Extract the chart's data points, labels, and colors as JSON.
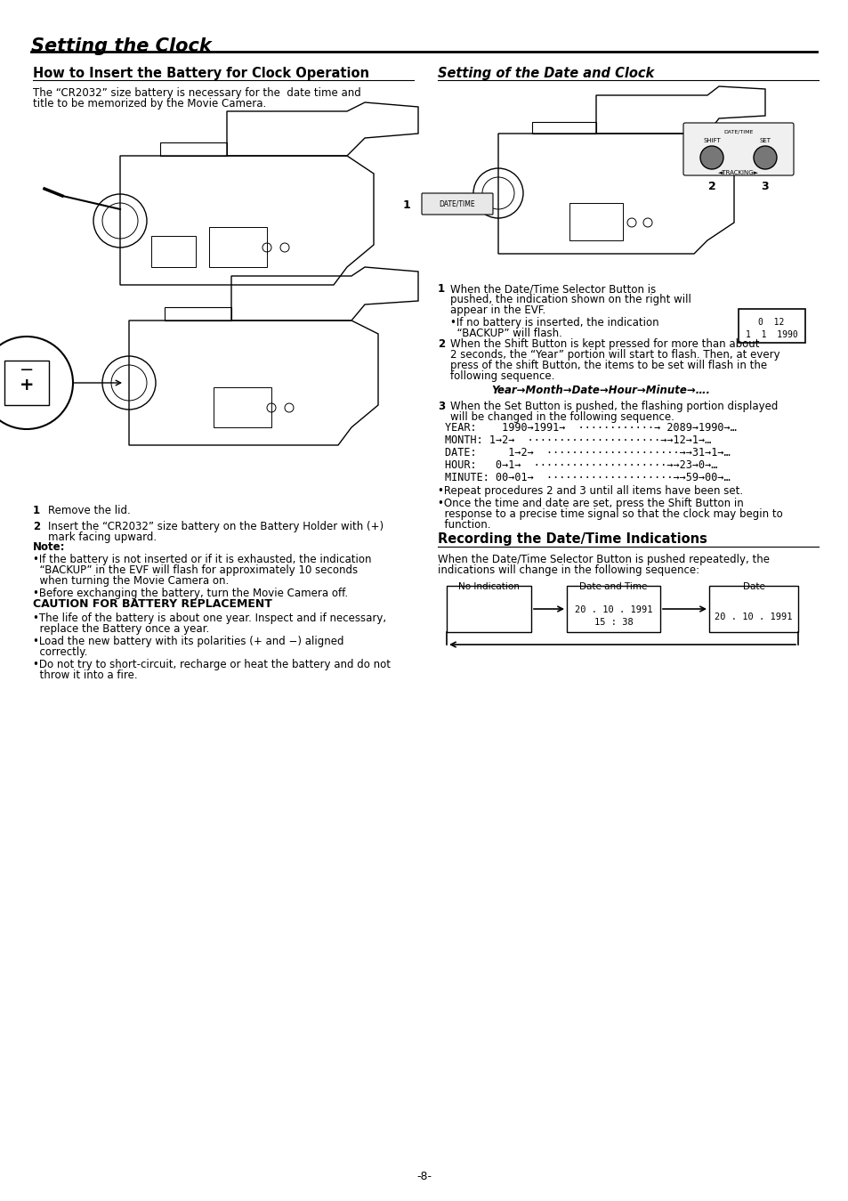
{
  "page_title": "Setting the Clock",
  "left_section_title": "How to Insert the Battery for Clock Operation",
  "left_intro_line1": "The “CR2032” size battery is necessary for the  date time and",
  "left_intro_line2": "title to be memorized by the Movie Camera.",
  "step1": "Remove the lid.",
  "step2_line1": "Insert the “CR2032” size battery on the Battery Holder with (+)",
  "step2_line2": "mark facing upward.",
  "note_title": "Note:",
  "note_b1_line1": "•If the battery is not inserted or if it is exhausted, the indication",
  "note_b1_line2": "  “BACKUP” in the EVF will flash for approximately 10 seconds",
  "note_b1_line3": "  when turning the Movie Camera on.",
  "note_b2": "•Before exchanging the battery, turn the Movie Camera off.",
  "caution_title": "CAUTION FOR BATTERY REPLACEMENT",
  "caution_b1_line1": "•The life of the battery is about one year. Inspect and if necessary,",
  "caution_b1_line2": "  replace the Battery once a year.",
  "caution_b2_line1": "•Load the new battery with its polarities (+ and −) aligned",
  "caution_b2_line2": "  correctly.",
  "caution_b3_line1": "•Do not try to short-circuit, recharge or heat the battery and do not",
  "caution_b3_line2": "  throw it into a fire.",
  "right_section_title": "Setting of the Date and Clock",
  "r_step1_num": "1",
  "r_step1_line1": "When the Date/Time Selector Button is",
  "r_step1_line2": "pushed, the indication shown on the right will",
  "r_step1_line3": "appear in the EVF.",
  "r_step1_b": "•If no battery is inserted, the indication",
  "r_step1_b2": "  “BACKUP” will flash.",
  "r_step2_num": "2",
  "r_step2_line1": "When the Shift Button is kept pressed for more than about",
  "r_step2_line2": "2 seconds, the “Year” portion will start to flash. Then, at every",
  "r_step2_line3": "press of the shift Button, the items to be set will flash in the",
  "r_step2_line4": "following sequence.",
  "r_seq": "Year→Month→Date→Hour→Minute→….",
  "r_step3_num": "3",
  "r_step3_line1": "When the Set Button is pushed, the flashing portion displayed",
  "r_step3_line2": "will be changed in the following sequence.",
  "year_line": "YEAR:    1990→1991→  ············→ 2089→1990→…",
  "month_line": "MONTH: 1→2→  ·····················→→12→1→…",
  "date_line": "DATE:     1→2→  ·····················→→31→1→…",
  "hour_line": "HOUR:   0→1→  ·····················→→23→0→…",
  "minute_line": "MINUTE: 00→01→  ····················→→59→00→…",
  "repeat1": "•Repeat procedures 2 and 3 until all items have been set.",
  "repeat2_line1": "•Once the time and date are set, press the Shift Button in",
  "repeat2_line2": "  response to a precise time signal so that the clock may begin to",
  "repeat2_line3": "  function.",
  "recording_title": "Recording the Date/Time Indications",
  "rec_intro1": "When the Date/Time Selector Button is pushed repeatedly, the",
  "rec_intro2": "indications will change in the following sequence:",
  "rec_label1": "No Indication",
  "rec_label2": "Date and Time",
  "rec_label3": "Date",
  "rec_time1": "15 : 38",
  "rec_time2": "20 . 10 . 1991",
  "rec_date": "20 . 10 . 1991",
  "page_num": "-8-",
  "bg_color": "#ffffff",
  "text_color": "#000000",
  "evf_text1": "0  12",
  "evf_text2": "1  1  1990"
}
